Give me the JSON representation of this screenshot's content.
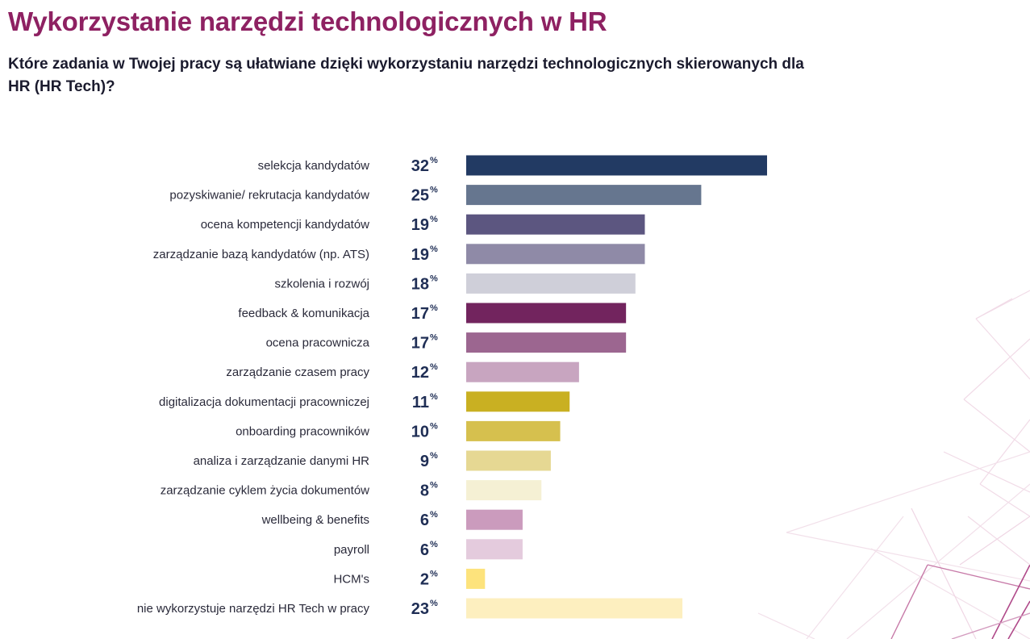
{
  "title": "Wykorzystanie narzędzi technologicznych w HR",
  "subtitle": "Które zadania w Twojej pracy są ułatwiane dzięki wykorzystaniu narzędzi technologicznych skierowanych dla HR (HR Tech)?",
  "chart_data": {
    "type": "bar",
    "orientation": "horizontal",
    "title": "Wykorzystanie narzędzi technologicznych w HR",
    "subtitle": "Które zadania w Twojej pracy są ułatwiane dzięki wykorzystaniu narzędzi technologicznych skierowanych dla HR (HR Tech)?",
    "xlabel": "",
    "ylabel": "",
    "unit": "%",
    "xlim": [
      0,
      32
    ],
    "grid": false,
    "categories": [
      "selekcja kandydatów",
      "pozyskiwanie/ rekrutacja kandydatów",
      "ocena kompetencji kandydatów",
      "zarządzanie bazą kandydatów (np. ATS)",
      "szkolenia i rozwój",
      "feedback & komunikacja",
      "ocena pracownicza",
      "zarządzanie czasem pracy",
      "digitalizacja dokumentacji pracowniczej",
      "onboarding pracowników",
      "analiza i zarządzanie danymi HR",
      "zarządzanie cyklem życia dokumentów",
      "wellbeing & benefits",
      "payroll",
      "HCM's",
      "nie wykorzystuje narzędzi HR Tech w pracy"
    ],
    "values": [
      32,
      25,
      19,
      19,
      18,
      17,
      17,
      12,
      11,
      10,
      9,
      8,
      6,
      6,
      2,
      23
    ],
    "colors": [
      "#223a63",
      "#66768f",
      "#5c5680",
      "#8f8aa7",
      "#cfcfd9",
      "#72245e",
      "#9c6690",
      "#c8a5c0",
      "#c9b022",
      "#d6c04e",
      "#e6d893",
      "#f5f0d4",
      "#cb9bbd",
      "#e4cbdd",
      "#fde37c",
      "#fdefbf"
    ]
  }
}
